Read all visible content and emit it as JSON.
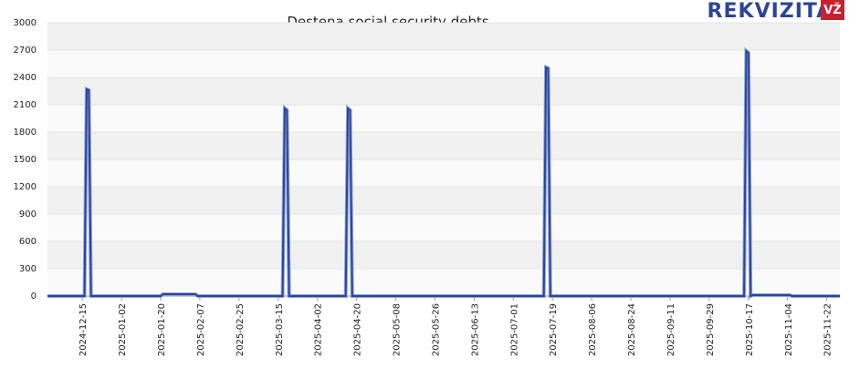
{
  "brand": {
    "name": "REKVIZITAI",
    "badge": "VŽ"
  },
  "chart_data": {
    "type": "line",
    "title": "Destena social security debts",
    "x": [
      "2024-11-29",
      "2024-12-16",
      "2024-12-17",
      "2024-12-18",
      "2024-12-19",
      "2025-01-20",
      "2025-01-21",
      "2025-02-05",
      "2025-02-06",
      "2025-03-17",
      "2025-03-18",
      "2025-03-19",
      "2025-03-20",
      "2025-04-15",
      "2025-04-16",
      "2025-04-17",
      "2025-04-18",
      "2025-07-15",
      "2025-07-16",
      "2025-07-17",
      "2025-07-18",
      "2025-10-15",
      "2025-10-16",
      "2025-10-17",
      "2025-10-18",
      "2025-10-19",
      "2025-11-05",
      "2025-11-06",
      "2025-11-28"
    ],
    "series": [
      {
        "name": "Social security debts",
        "color": "#2e4596",
        "values": [
          0,
          0,
          2270,
          2260,
          0,
          0,
          20,
          20,
          0,
          0,
          2060,
          2040,
          0,
          0,
          2060,
          2040,
          0,
          0,
          2510,
          2500,
          0,
          0,
          2690,
          2670,
          0,
          10,
          10,
          0,
          0
        ]
      }
    ],
    "xlim": [
      "2024-11-29",
      "2025-11-28"
    ],
    "xticks": [
      "2024-12-15",
      "2025-01-02",
      "2025-01-20",
      "2025-02-07",
      "2025-02-25",
      "2025-03-15",
      "2025-04-02",
      "2025-04-20",
      "2025-05-08",
      "2025-05-26",
      "2025-06-13",
      "2025-07-01",
      "2025-07-19",
      "2025-08-06",
      "2025-08-24",
      "2025-09-11",
      "2025-09-29",
      "2025-10-17",
      "2025-11-04",
      "2025-11-22"
    ],
    "ylim": [
      0,
      3000
    ],
    "yticks": [
      0,
      300,
      600,
      900,
      1200,
      1500,
      1800,
      2100,
      2400,
      2700,
      3000
    ],
    "grid": true
  }
}
